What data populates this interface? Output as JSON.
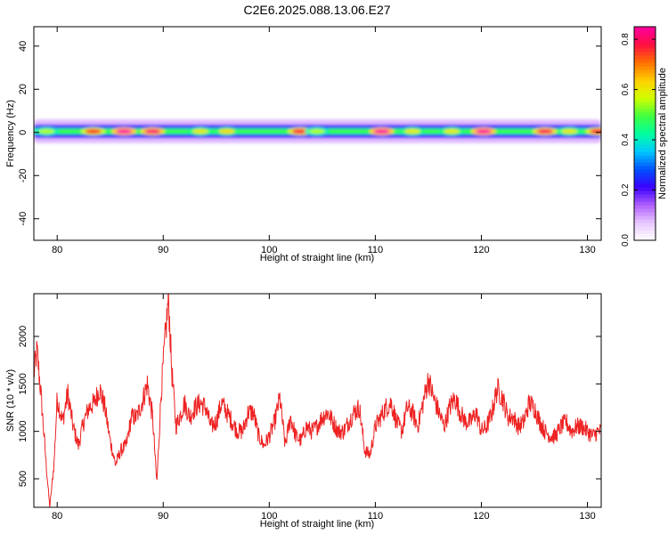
{
  "figure": {
    "title": "C2E6.2025.088.13.06.E27"
  },
  "chart_data": [
    {
      "type": "heatmap",
      "xlabel": "Height of straight line (km)",
      "ylabel": "Frequency (Hz)",
      "xlim": [
        77.8,
        131.3
      ],
      "ylim": [
        -50,
        49
      ],
      "xticks": [
        80,
        90,
        100,
        110,
        120,
        130
      ],
      "yticks": [
        -40,
        -20,
        0,
        20,
        40
      ],
      "colorbar": {
        "label": "Normalized spectral amplitude",
        "range": [
          0,
          0.85
        ],
        "ticks": [
          0.0,
          0.2,
          0.4,
          0.6,
          0.8
        ],
        "tick_labels": [
          "0.0",
          "0.2",
          "0.4",
          "0.6",
          "0.8"
        ],
        "colormap": [
          "#ffffff",
          "#e8c8ff",
          "#b060ff",
          "#3a00ff",
          "#0050ff",
          "#00c8ff",
          "#00ffa0",
          "#40ff40",
          "#d0ff00",
          "#ffd000",
          "#ff7000",
          "#ff1040",
          "#ff00a0"
        ]
      },
      "band": {
        "center_hz": 0.5,
        "core_halfwidth_hz": 2.5,
        "halo_halfwidth_hz": 5.5,
        "typical_level": 0.48,
        "peaks": [
          {
            "x": 79.0,
            "level": 0.55
          },
          {
            "x": 83.4,
            "level": 0.75
          },
          {
            "x": 86.3,
            "level": 0.85
          },
          {
            "x": 89.0,
            "level": 0.82
          },
          {
            "x": 93.5,
            "level": 0.6
          },
          {
            "x": 96.0,
            "level": 0.62
          },
          {
            "x": 102.9,
            "level": 0.78
          },
          {
            "x": 104.5,
            "level": 0.55
          },
          {
            "x": 110.6,
            "level": 0.85
          },
          {
            "x": 113.5,
            "level": 0.6
          },
          {
            "x": 117.2,
            "level": 0.6
          },
          {
            "x": 120.2,
            "level": 0.85
          },
          {
            "x": 126.0,
            "level": 0.8
          },
          {
            "x": 128.3,
            "level": 0.6
          },
          {
            "x": 131.0,
            "level": 0.78
          }
        ]
      }
    },
    {
      "type": "line",
      "xlabel": "Height of straight line (km)",
      "ylabel": "SNR (10 * v/v)",
      "xlim": [
        77.8,
        131.3
      ],
      "ylim": [
        200,
        2450
      ],
      "xticks": [
        80,
        90,
        100,
        110,
        120,
        130
      ],
      "yticks": [
        500,
        1000,
        1500,
        2000
      ],
      "color": "#ee2222",
      "points": [
        [
          77.8,
          1600
        ],
        [
          78.1,
          1850
        ],
        [
          78.5,
          1350
        ],
        [
          79.0,
          600
        ],
        [
          79.3,
          200
        ],
        [
          79.7,
          650
        ],
        [
          80.0,
          1350
        ],
        [
          80.5,
          1100
        ],
        [
          81.0,
          1400
        ],
        [
          81.5,
          1050
        ],
        [
          82.0,
          850
        ],
        [
          82.5,
          1100
        ],
        [
          83.0,
          1250
        ],
        [
          83.5,
          1300
        ],
        [
          84.0,
          1450
        ],
        [
          84.5,
          1250
        ],
        [
          85.0,
          900
        ],
        [
          85.5,
          650
        ],
        [
          86.0,
          800
        ],
        [
          86.5,
          850
        ],
        [
          87.0,
          1150
        ],
        [
          87.5,
          1150
        ],
        [
          88.0,
          1300
        ],
        [
          88.5,
          1500
        ],
        [
          89.0,
          1150
        ],
        [
          89.4,
          450
        ],
        [
          89.8,
          1400
        ],
        [
          90.2,
          2000
        ],
        [
          90.5,
          2400
        ],
        [
          90.8,
          1650
        ],
        [
          91.2,
          1050
        ],
        [
          91.7,
          1200
        ],
        [
          92.0,
          1300
        ],
        [
          92.5,
          1150
        ],
        [
          93.0,
          1250
        ],
        [
          93.5,
          1300
        ],
        [
          94.0,
          1250
        ],
        [
          94.5,
          1050
        ],
        [
          95.0,
          1100
        ],
        [
          95.5,
          1300
        ],
        [
          96.0,
          1200
        ],
        [
          96.5,
          1100
        ],
        [
          97.0,
          1000
        ],
        [
          97.5,
          1000
        ],
        [
          98.0,
          1200
        ],
        [
          98.5,
          1200
        ],
        [
          99.0,
          950
        ],
        [
          99.5,
          850
        ],
        [
          100.0,
          950
        ],
        [
          100.5,
          1100
        ],
        [
          101.0,
          1350
        ],
        [
          101.5,
          850
        ],
        [
          102.0,
          1150
        ],
        [
          102.5,
          950
        ],
        [
          103.0,
          900
        ],
        [
          103.5,
          1050
        ],
        [
          104.0,
          1000
        ],
        [
          104.5,
          1050
        ],
        [
          105.0,
          1150
        ],
        [
          105.5,
          1200
        ],
        [
          106.0,
          1100
        ],
        [
          106.5,
          1000
        ],
        [
          107.0,
          1000
        ],
        [
          107.5,
          1100
        ],
        [
          108.0,
          1200
        ],
        [
          108.5,
          1250
        ],
        [
          109.0,
          800
        ],
        [
          109.5,
          750
        ],
        [
          110.0,
          1050
        ],
        [
          110.5,
          1150
        ],
        [
          111.0,
          1250
        ],
        [
          111.5,
          1300
        ],
        [
          112.0,
          1100
        ],
        [
          112.5,
          1000
        ],
        [
          113.0,
          1250
        ],
        [
          113.5,
          1200
        ],
        [
          114.0,
          1050
        ],
        [
          114.5,
          1300
        ],
        [
          115.0,
          1550
        ],
        [
          115.5,
          1350
        ],
        [
          116.0,
          1200
        ],
        [
          116.5,
          1050
        ],
        [
          117.0,
          1250
        ],
        [
          117.5,
          1350
        ],
        [
          118.0,
          1200
        ],
        [
          118.5,
          1100
        ],
        [
          119.0,
          1100
        ],
        [
          119.5,
          1200
        ],
        [
          120.0,
          1000
        ],
        [
          120.5,
          1050
        ],
        [
          121.0,
          1200
        ],
        [
          121.5,
          1450
        ],
        [
          122.0,
          1350
        ],
        [
          122.5,
          1150
        ],
        [
          123.0,
          1150
        ],
        [
          123.5,
          1050
        ],
        [
          124.0,
          1100
        ],
        [
          124.5,
          1300
        ],
        [
          125.0,
          1250
        ],
        [
          125.5,
          1100
        ],
        [
          126.0,
          1000
        ],
        [
          126.5,
          950
        ],
        [
          127.0,
          950
        ],
        [
          127.5,
          1050
        ],
        [
          128.0,
          1100
        ],
        [
          128.5,
          1000
        ],
        [
          129.0,
          1050
        ],
        [
          129.5,
          1050
        ],
        [
          130.0,
          1000
        ],
        [
          130.5,
          950
        ],
        [
          131.0,
          1000
        ],
        [
          131.3,
          1000
        ]
      ]
    }
  ]
}
